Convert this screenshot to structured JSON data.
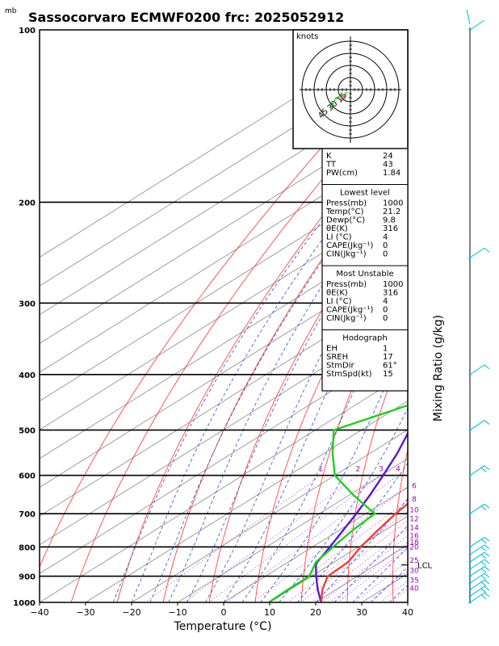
{
  "title": "Sassocorvaro ECMWF0200  frc: 2025052912",
  "unit_mb": "mb",
  "chart_data": {
    "type": "skew-t",
    "xlabel": "Temperature (°C)",
    "ylabel_right": "Mixing Ratio (g/kg)",
    "x_ticks": [
      -40,
      -30,
      -20,
      -10,
      0,
      10,
      20,
      30,
      40
    ],
    "p_ticks": [
      100,
      200,
      300,
      400,
      500,
      600,
      700,
      800,
      900,
      1000
    ],
    "ylim_hpa": [
      1000,
      100
    ],
    "xlim_c": [
      -40,
      40
    ],
    "temperature_profile": [
      {
        "p": 1000,
        "t": 21.2
      },
      {
        "p": 950,
        "t": 17.0
      },
      {
        "p": 900,
        "t": 13.5
      },
      {
        "p": 850,
        "t": 13.0
      },
      {
        "p": 800,
        "t": 10.5
      },
      {
        "p": 750,
        "t": 8.5
      },
      {
        "p": 700,
        "t": 6.5
      },
      {
        "p": 650,
        "t": 5.0
      },
      {
        "p": 600,
        "t": 3.2
      },
      {
        "p": 550,
        "t": -1.0
      },
      {
        "p": 500,
        "t": -5.5
      },
      {
        "p": 450,
        "t": -10.5
      },
      {
        "p": 400,
        "t": -16.0
      },
      {
        "p": 350,
        "t": -22.5
      },
      {
        "p": 300,
        "t": -30.0
      },
      {
        "p": 280,
        "t": -34.0
      },
      {
        "p": 250,
        "t": -37.5
      },
      {
        "p": 200,
        "t": -37.0
      },
      {
        "p": 150,
        "t": -41.0
      },
      {
        "p": 100,
        "t": -49.0
      }
    ],
    "dewpoint_profile": [
      {
        "p": 1000,
        "t": 9.8
      },
      {
        "p": 950,
        "t": 9.5
      },
      {
        "p": 900,
        "t": 9.5
      },
      {
        "p": 850,
        "t": 6.0
      },
      {
        "p": 800,
        "t": 4.5
      },
      {
        "p": 750,
        "t": 3.0
      },
      {
        "p": 700,
        "t": 2.0
      },
      {
        "p": 650,
        "t": -9.0
      },
      {
        "p": 600,
        "t": -20.0
      },
      {
        "p": 550,
        "t": -28.0
      },
      {
        "p": 500,
        "t": -36.0
      },
      {
        "p": 450,
        "t": -28.0
      },
      {
        "p": 400,
        "t": -18.0
      },
      {
        "p": 350,
        "t": -26.0
      },
      {
        "p": 300,
        "t": -33.0
      },
      {
        "p": 250,
        "t": -41.0
      },
      {
        "p": 200,
        "t": -57.0
      },
      {
        "p": 150,
        "t": -68.0
      },
      {
        "p": 100,
        "t": -80.0
      }
    ],
    "parcel_profile": [
      {
        "p": 1000,
        "t": 21.2
      },
      {
        "p": 950,
        "t": 16.0
      },
      {
        "p": 900,
        "t": 11.0
      },
      {
        "p": 860,
        "t": 7.0
      },
      {
        "p": 850,
        "t": 6.3
      },
      {
        "p": 800,
        "t": 3.8
      },
      {
        "p": 750,
        "t": 1.0
      },
      {
        "p": 700,
        "t": -2.0
      },
      {
        "p": 650,
        "t": -5.5
      },
      {
        "p": 600,
        "t": -9.5
      },
      {
        "p": 550,
        "t": -14.0
      },
      {
        "p": 500,
        "t": -19.5
      },
      {
        "p": 450,
        "t": -25.5
      },
      {
        "p": 400,
        "t": -32.5
      },
      {
        "p": 350,
        "t": -41.0
      },
      {
        "p": 300,
        "t": -50.5
      },
      {
        "p": 250,
        "t": -61.5
      },
      {
        "p": 200,
        "t": -74.0
      },
      {
        "p": 150,
        "t": -88.0
      },
      {
        "p": 110,
        "t": -100.0
      }
    ],
    "mixing_ratio_labels": [
      "1",
      "2",
      "3",
      "4",
      "6",
      "8",
      "10",
      "12",
      "14",
      "16",
      "18",
      "20",
      "25",
      "30",
      "35",
      "40"
    ],
    "mixing_ratio_values": [
      1,
      2,
      3,
      4,
      6,
      8,
      10,
      12,
      14,
      16,
      18,
      20,
      25,
      30,
      35,
      40
    ],
    "lcl_label": "LCL",
    "lcl_pressure": 860,
    "hodograph": {
      "units_label": "knots",
      "ring_labels": [
        "15",
        "30",
        "45"
      ]
    }
  },
  "indices": {
    "rows": [
      {
        "label": "K",
        "value": "24"
      },
      {
        "label": "TT",
        "value": "43"
      },
      {
        "label": "PW(cm)",
        "value": "1.84"
      }
    ]
  },
  "lowest_level": {
    "header": "Lowest level",
    "rows": [
      {
        "label": "Press(mb)",
        "value": "1000"
      },
      {
        "label": "Temp(°C)",
        "value": "21.2"
      },
      {
        "label": "Dewp(°C)",
        "value": "9.8"
      },
      {
        "label": "θE(K)",
        "value": "316"
      },
      {
        "label": "LI (°C)",
        "value": "4"
      },
      {
        "label": "CAPE(Jkg⁻¹)",
        "value": "0"
      },
      {
        "label": "CIN(Jkg⁻¹)",
        "value": "0"
      }
    ]
  },
  "most_unstable": {
    "header": "Most Unstable",
    "rows": [
      {
        "label": "Press(mb)",
        "value": "1000"
      },
      {
        "label": "θE(K)",
        "value": "316"
      },
      {
        "label": "LI (°C)",
        "value": "4"
      },
      {
        "label": "CAPE(Jkg⁻¹)",
        "value": "0"
      },
      {
        "label": "CIN(Jkg⁻¹)",
        "value": "0"
      }
    ]
  },
  "hodograph_panel": {
    "header": "Hodograph",
    "rows": [
      {
        "label": "EH",
        "value": "1"
      },
      {
        "label": "SREH",
        "value": "17"
      },
      {
        "label": "StmDir",
        "value": "61°"
      },
      {
        "label": "StmSpd(kt)",
        "value": "15"
      }
    ]
  },
  "colors": {
    "temperature": "#e8413a",
    "dewpoint": "#22cc22",
    "parcel": "#5a18c9",
    "isotherm": "#8c8c8c",
    "dry_adiabat": "#ff3030",
    "moist_adiabat": "#2b4fd8",
    "mixing_ratio": "#c000c0",
    "wind": "#00b8d8"
  }
}
